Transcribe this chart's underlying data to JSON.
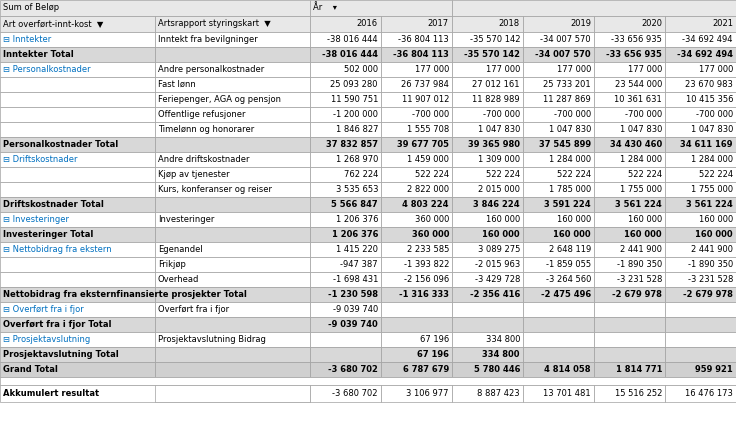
{
  "top_header_left": "Sum of Beløp",
  "top_header_right": "År",
  "col_header_left": "Art overført-innt-kost",
  "col_header_mid": "Artsrapport styringskart",
  "years": [
    "2016",
    "2017",
    "2018",
    "2019",
    "2020",
    "2021"
  ],
  "rows": [
    {
      "type": "data",
      "cat": "⊟ Inntekter",
      "sub": "Inntekt fra bevilgninger",
      "vals": [
        "-38 016 444",
        "-36 804 113",
        "-35 570 142",
        "-34 007 570",
        "-33 656 935",
        "-34 692 494"
      ],
      "bold": false
    },
    {
      "type": "total",
      "cat": "Inntekter Total",
      "sub": "",
      "vals": [
        "-38 016 444",
        "-36 804 113",
        "-35 570 142",
        "-34 007 570",
        "-33 656 935",
        "-34 692 494"
      ],
      "bold": true
    },
    {
      "type": "data",
      "cat": "⊟ Personalkostnader",
      "sub": "Andre personalkostnader",
      "vals": [
        "502 000",
        "177 000",
        "177 000",
        "177 000",
        "177 000",
        "177 000"
      ],
      "bold": false
    },
    {
      "type": "data",
      "cat": "",
      "sub": "Fast lønn",
      "vals": [
        "25 093 280",
        "26 737 984",
        "27 012 161",
        "25 733 201",
        "23 544 000",
        "23 670 983"
      ],
      "bold": false
    },
    {
      "type": "data",
      "cat": "",
      "sub": "Feriepenger, AGA og pensjon",
      "vals": [
        "11 590 751",
        "11 907 012",
        "11 828 989",
        "11 287 869",
        "10 361 631",
        "10 415 356"
      ],
      "bold": false
    },
    {
      "type": "data",
      "cat": "",
      "sub": "Offentlige refusjoner",
      "vals": [
        "-1 200 000",
        "-700 000",
        "-700 000",
        "-700 000",
        "-700 000",
        "-700 000"
      ],
      "bold": false
    },
    {
      "type": "data",
      "cat": "",
      "sub": "Timelønn og honorarer",
      "vals": [
        "1 846 827",
        "1 555 708",
        "1 047 830",
        "1 047 830",
        "1 047 830",
        "1 047 830"
      ],
      "bold": false
    },
    {
      "type": "total",
      "cat": "Personalkostnader Total",
      "sub": "",
      "vals": [
        "37 832 857",
        "39 677 705",
        "39 365 980",
        "37 545 899",
        "34 430 460",
        "34 611 169"
      ],
      "bold": true
    },
    {
      "type": "data",
      "cat": "⊟ Driftskostnader",
      "sub": "Andre driftskostnader",
      "vals": [
        "1 268 970",
        "1 459 000",
        "1 309 000",
        "1 284 000",
        "1 284 000",
        "1 284 000"
      ],
      "bold": false
    },
    {
      "type": "data",
      "cat": "",
      "sub": "Kjøp av tjenester",
      "vals": [
        "762 224",
        "522 224",
        "522 224",
        "522 224",
        "522 224",
        "522 224"
      ],
      "bold": false
    },
    {
      "type": "data",
      "cat": "",
      "sub": "Kurs, konferanser og reiser",
      "vals": [
        "3 535 653",
        "2 822 000",
        "2 015 000",
        "1 785 000",
        "1 755 000",
        "1 755 000"
      ],
      "bold": false
    },
    {
      "type": "total",
      "cat": "Driftskostnader Total",
      "sub": "",
      "vals": [
        "5 566 847",
        "4 803 224",
        "3 846 224",
        "3 591 224",
        "3 561 224",
        "3 561 224"
      ],
      "bold": true
    },
    {
      "type": "data",
      "cat": "⊟ Investeringer",
      "sub": "Investeringer",
      "vals": [
        "1 206 376",
        "360 000",
        "160 000",
        "160 000",
        "160 000",
        "160 000"
      ],
      "bold": false
    },
    {
      "type": "total",
      "cat": "Investeringer Total",
      "sub": "",
      "vals": [
        "1 206 376",
        "360 000",
        "160 000",
        "160 000",
        "160 000",
        "160 000"
      ],
      "bold": true
    },
    {
      "type": "data",
      "cat": "⊟ Nettobidrag fra ekstern",
      "sub": "Egenandel",
      "vals": [
        "1 415 220",
        "2 233 585",
        "3 089 275",
        "2 648 119",
        "2 441 900",
        "2 441 900"
      ],
      "bold": false
    },
    {
      "type": "data",
      "cat": "",
      "sub": "Frikjøp",
      "vals": [
        "-947 387",
        "-1 393 822",
        "-2 015 963",
        "-1 859 055",
        "-1 890 350",
        "-1 890 350"
      ],
      "bold": false
    },
    {
      "type": "data",
      "cat": "",
      "sub": "Overhead",
      "vals": [
        "-1 698 431",
        "-2 156 096",
        "-3 429 728",
        "-3 264 560",
        "-3 231 528",
        "-3 231 528"
      ],
      "bold": false
    },
    {
      "type": "total",
      "cat": "Nettobidrag fra eksternfinansierte prosjekter Total",
      "sub": "",
      "vals": [
        "-1 230 598",
        "-1 316 333",
        "-2 356 416",
        "-2 475 496",
        "-2 679 978",
        "-2 679 978"
      ],
      "bold": true
    },
    {
      "type": "data",
      "cat": "⊟ Overført fra i fjor",
      "sub": "Overført fra i fjor",
      "vals": [
        "-9 039 740",
        "",
        "",
        "",
        "",
        ""
      ],
      "bold": false
    },
    {
      "type": "total",
      "cat": "Overført fra i fjor Total",
      "sub": "",
      "vals": [
        "-9 039 740",
        "",
        "",
        "",
        "",
        ""
      ],
      "bold": true
    },
    {
      "type": "data",
      "cat": "⊟ Prosjektavslutning",
      "sub": "Prosjektavslutning Bidrag",
      "vals": [
        "",
        "67 196",
        "334 800",
        "",
        "",
        ""
      ],
      "bold": false
    },
    {
      "type": "total",
      "cat": "Prosjektavslutning Total",
      "sub": "",
      "vals": [
        "",
        "67 196",
        "334 800",
        "",
        "",
        ""
      ],
      "bold": true
    },
    {
      "type": "grand",
      "cat": "Grand Total",
      "sub": "",
      "vals": [
        "-3 680 702",
        "6 787 679",
        "5 780 446",
        "4 814 058",
        "1 814 771",
        "959 921"
      ],
      "bold": true
    }
  ],
  "akkumulert_label": "Akkumulert resultat",
  "akkumulert_vals": [
    "-3 680 702",
    "3 106 977",
    "8 887 423",
    "13 701 481",
    "15 516 252",
    "16 476 173"
  ],
  "bg_header": "#e8e8e8",
  "bg_total": "#d8d8d8",
  "bg_white": "#ffffff",
  "bg_grand": "#d0d0d0",
  "bg_akkumulert": "#ffffff",
  "border_color": "#a0a0a0",
  "text_normal": "#000000",
  "text_blue": "#0070c0",
  "fontsize_main": 6.0,
  "fontsize_header": 6.0
}
